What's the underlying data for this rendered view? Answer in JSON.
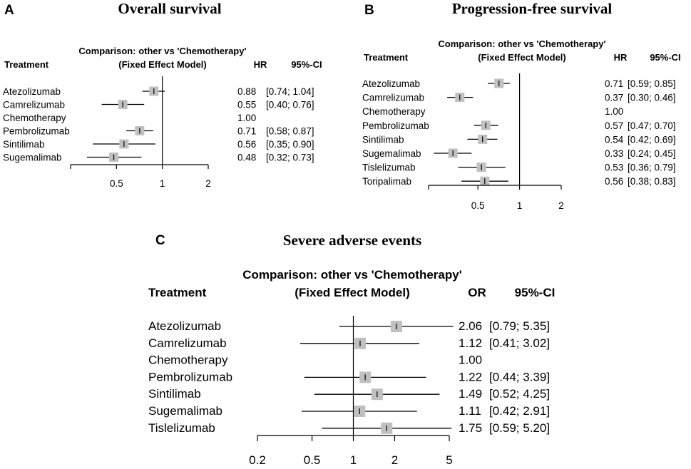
{
  "chart_data": [
    {
      "type": "forest",
      "panel_label": "A",
      "title": "Overall survival",
      "comparison": "Comparison: other vs 'Chemotherapy'",
      "model": "(Fixed Effect Model)",
      "col_treatment": "Treatment",
      "col_measure": "HR",
      "col_ci": "95%-CI",
      "reference": 1,
      "xscale": "log",
      "xlim": [
        0.25,
        2
      ],
      "xticks": [
        0.5,
        1,
        2
      ],
      "xtick_labels": [
        "0.5",
        "1",
        "2"
      ],
      "rows": [
        {
          "treatment": "Atezolizumab",
          "est": 0.88,
          "lo": 0.74,
          "hi": 1.04,
          "est_label": "0.88",
          "ci_label": "[0.74; 1.04]"
        },
        {
          "treatment": "Camrelizumab",
          "est": 0.55,
          "lo": 0.4,
          "hi": 0.76,
          "est_label": "0.55",
          "ci_label": "[0.40; 0.76]"
        },
        {
          "treatment": "Chemotherapy",
          "est": null,
          "lo": null,
          "hi": null,
          "est_label": "1.00",
          "ci_label": ""
        },
        {
          "treatment": "Pembrolizumab",
          "est": 0.71,
          "lo": 0.58,
          "hi": 0.87,
          "est_label": "0.71",
          "ci_label": "[0.58; 0.87]"
        },
        {
          "treatment": "Sintilimab",
          "est": 0.56,
          "lo": 0.35,
          "hi": 0.9,
          "est_label": "0.56",
          "ci_label": "[0.35; 0.90]"
        },
        {
          "treatment": "Sugemalimab",
          "est": 0.48,
          "lo": 0.32,
          "hi": 0.73,
          "est_label": "0.48",
          "ci_label": "[0.32; 0.73]"
        }
      ]
    },
    {
      "type": "forest",
      "panel_label": "B",
      "title": "Progression-free survival",
      "comparison": "Comparison: other vs 'Chemotherapy'",
      "model": "(Fixed Effect Model)",
      "col_treatment": "Treatment",
      "col_measure": "HR",
      "col_ci": "95%-CI",
      "reference": 1,
      "xscale": "log",
      "xlim": [
        0.22,
        2
      ],
      "xticks": [
        0.5,
        1,
        2
      ],
      "xtick_labels": [
        "0.5",
        "1",
        "2"
      ],
      "rows": [
        {
          "treatment": "Atezolizumab",
          "est": 0.71,
          "lo": 0.59,
          "hi": 0.85,
          "est_label": "0.71",
          "ci_label": "[0.59; 0.85]"
        },
        {
          "treatment": "Camrelizumab",
          "est": 0.37,
          "lo": 0.3,
          "hi": 0.46,
          "est_label": "0.37",
          "ci_label": "[0.30; 0.46]"
        },
        {
          "treatment": "Chemotherapy",
          "est": null,
          "lo": null,
          "hi": null,
          "est_label": "1.00",
          "ci_label": ""
        },
        {
          "treatment": "Pembrolizumab",
          "est": 0.57,
          "lo": 0.47,
          "hi": 0.7,
          "est_label": "0.57",
          "ci_label": "[0.47; 0.70]"
        },
        {
          "treatment": "Sintilimab",
          "est": 0.54,
          "lo": 0.42,
          "hi": 0.69,
          "est_label": "0.54",
          "ci_label": "[0.42; 0.69]"
        },
        {
          "treatment": "Sugemalimab",
          "est": 0.33,
          "lo": 0.24,
          "hi": 0.45,
          "est_label": "0.33",
          "ci_label": "[0.24; 0.45]"
        },
        {
          "treatment": "Tislelizumab",
          "est": 0.53,
          "lo": 0.36,
          "hi": 0.79,
          "est_label": "0.53",
          "ci_label": "[0.36; 0.79]"
        },
        {
          "treatment": "Toripalimab",
          "est": 0.56,
          "lo": 0.38,
          "hi": 0.83,
          "est_label": "0.56",
          "ci_label": "[0.38; 0.83]"
        }
      ]
    },
    {
      "type": "forest",
      "panel_label": "C",
      "title": "Severe adverse events",
      "comparison": "Comparison: other vs 'Chemotherapy'",
      "model": "(Fixed Effect Model)",
      "col_treatment": "Treatment",
      "col_measure": "OR",
      "col_ci": "95%-CI",
      "reference": 1,
      "xscale": "log",
      "xlim": [
        0.2,
        5
      ],
      "xticks": [
        0.2,
        0.5,
        1,
        2,
        5
      ],
      "xtick_labels": [
        "0.2",
        "0.5",
        "1",
        "2",
        "5"
      ],
      "rows": [
        {
          "treatment": "Atezolizumab",
          "est": 2.06,
          "lo": 0.79,
          "hi": 5.35,
          "est_label": "2.06",
          "ci_label": "[0.79; 5.35]"
        },
        {
          "treatment": "Camrelizumab",
          "est": 1.12,
          "lo": 0.41,
          "hi": 3.02,
          "est_label": "1.12",
          "ci_label": "[0.41; 3.02]"
        },
        {
          "treatment": "Chemotherapy",
          "est": null,
          "lo": null,
          "hi": null,
          "est_label": "1.00",
          "ci_label": ""
        },
        {
          "treatment": "Pembrolizumab",
          "est": 1.22,
          "lo": 0.44,
          "hi": 3.39,
          "est_label": "1.22",
          "ci_label": "[0.44; 3.39]"
        },
        {
          "treatment": "Sintilimab",
          "est": 1.49,
          "lo": 0.52,
          "hi": 4.25,
          "est_label": "1.49",
          "ci_label": "[0.52; 4.25]"
        },
        {
          "treatment": "Sugemalimab",
          "est": 1.11,
          "lo": 0.42,
          "hi": 2.91,
          "est_label": "1.11",
          "ci_label": "[0.42; 2.91]"
        },
        {
          "treatment": "Tislelizumab",
          "est": 1.75,
          "lo": 0.59,
          "hi": 5.2,
          "est_label": "1.75",
          "ci_label": "[0.59; 5.20]"
        }
      ]
    }
  ],
  "colors": {
    "box": "#c0c0c0",
    "line": "#000000",
    "text": "#000000"
  }
}
